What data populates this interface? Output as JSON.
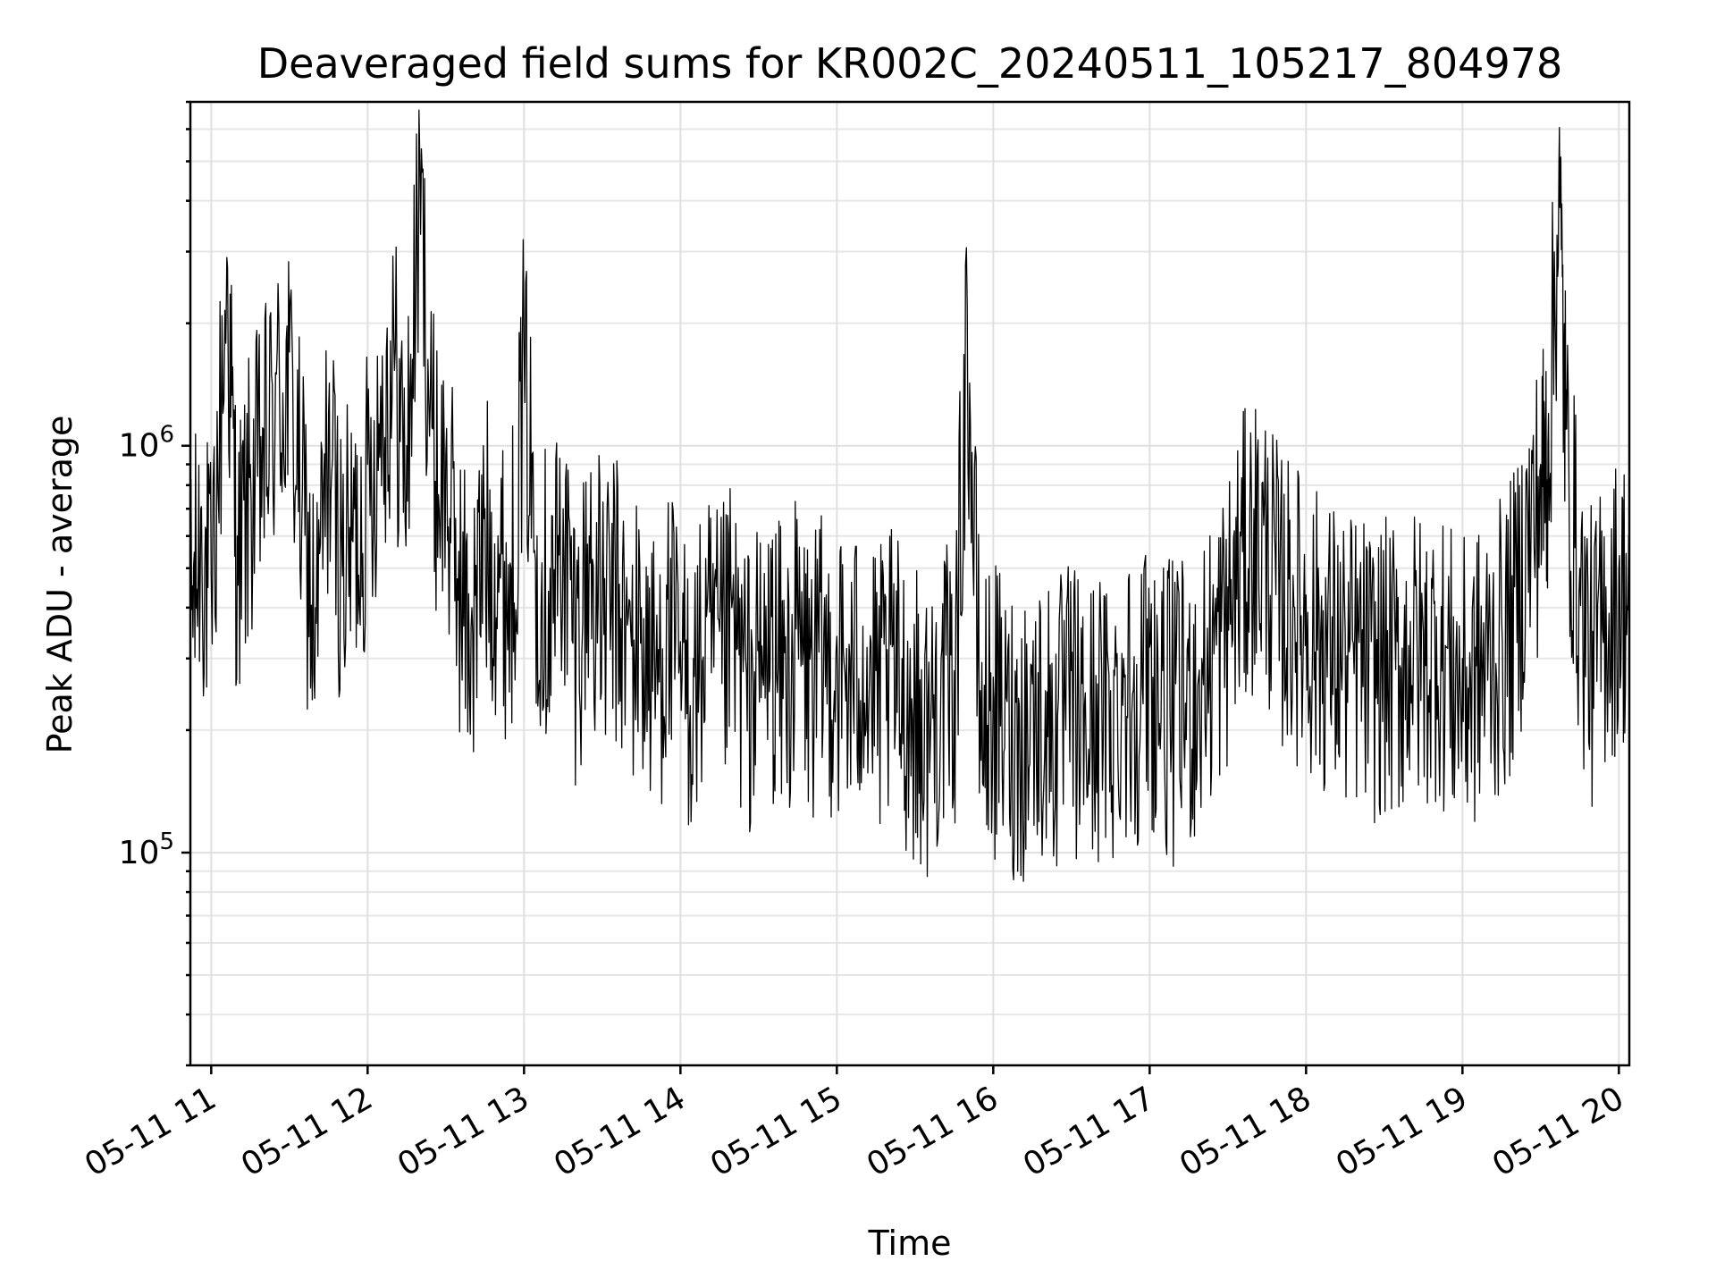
{
  "chart_data": {
    "type": "line",
    "title": "Deaveraged field sums for KR002C_20240511_105217_804978",
    "xlabel": "Time",
    "ylabel": "Peak ADU - average",
    "yscale": "log",
    "ylim": [
      30000,
      7000000
    ],
    "xlim": [
      "2024-05-11 10:52",
      "2024-05-11 20:04"
    ],
    "grid": true,
    "x_ticks": [
      {
        "time": "2024-05-11 11:00",
        "label": "05-11 11"
      },
      {
        "time": "2024-05-11 12:00",
        "label": "05-11 12"
      },
      {
        "time": "2024-05-11 13:00",
        "label": "05-11 13"
      },
      {
        "time": "2024-05-11 14:00",
        "label": "05-11 14"
      },
      {
        "time": "2024-05-11 15:00",
        "label": "05-11 15"
      },
      {
        "time": "2024-05-11 16:00",
        "label": "05-11 16"
      },
      {
        "time": "2024-05-11 17:00",
        "label": "05-11 17"
      },
      {
        "time": "2024-05-11 18:00",
        "label": "05-11 18"
      },
      {
        "time": "2024-05-11 19:00",
        "label": "05-11 19"
      },
      {
        "time": "2024-05-11 20:00",
        "label": "05-11 20"
      }
    ],
    "y_ticks": [
      {
        "value": 100000,
        "label": "10",
        "exponent": "5"
      },
      {
        "value": 1000000,
        "label": "10",
        "exponent": "6"
      }
    ],
    "series": [
      {
        "color": "#000000",
        "x": [
          "2024-05-11 10:52",
          "2024-05-11 10:56",
          "2024-05-11 11:00",
          "2024-05-11 11:06",
          "2024-05-11 11:10",
          "2024-05-11 11:15",
          "2024-05-11 11:20",
          "2024-05-11 11:25",
          "2024-05-11 11:30",
          "2024-05-11 11:35",
          "2024-05-11 11:40",
          "2024-05-11 11:45",
          "2024-05-11 11:50",
          "2024-05-11 11:55",
          "2024-05-11 12:00",
          "2024-05-11 12:05",
          "2024-05-11 12:10",
          "2024-05-11 12:15",
          "2024-05-11 12:20",
          "2024-05-11 12:25",
          "2024-05-11 12:30",
          "2024-05-11 12:35",
          "2024-05-11 12:40",
          "2024-05-11 12:45",
          "2024-05-11 12:50",
          "2024-05-11 12:55",
          "2024-05-11 13:00",
          "2024-05-11 13:05",
          "2024-05-11 13:10",
          "2024-05-11 13:15",
          "2024-05-11 13:20",
          "2024-05-11 13:25",
          "2024-05-11 13:30",
          "2024-05-11 13:35",
          "2024-05-11 13:40",
          "2024-05-11 13:45",
          "2024-05-11 13:50",
          "2024-05-11 13:55",
          "2024-05-11 14:00",
          "2024-05-11 14:05",
          "2024-05-11 14:10",
          "2024-05-11 14:15",
          "2024-05-11 14:20",
          "2024-05-11 14:25",
          "2024-05-11 14:30",
          "2024-05-11 14:35",
          "2024-05-11 14:40",
          "2024-05-11 14:45",
          "2024-05-11 14:50",
          "2024-05-11 14:55",
          "2024-05-11 15:00",
          "2024-05-11 15:05",
          "2024-05-11 15:10",
          "2024-05-11 15:15",
          "2024-05-11 15:20",
          "2024-05-11 15:25",
          "2024-05-11 15:30",
          "2024-05-11 15:35",
          "2024-05-11 15:40",
          "2024-05-11 15:45",
          "2024-05-11 15:50",
          "2024-05-11 15:55",
          "2024-05-11 16:00",
          "2024-05-11 16:05",
          "2024-05-11 16:10",
          "2024-05-11 16:15",
          "2024-05-11 16:20",
          "2024-05-11 16:25",
          "2024-05-11 16:30",
          "2024-05-11 16:35",
          "2024-05-11 16:40",
          "2024-05-11 16:45",
          "2024-05-11 16:50",
          "2024-05-11 16:55",
          "2024-05-11 17:00",
          "2024-05-11 17:05",
          "2024-05-11 17:10",
          "2024-05-11 17:15",
          "2024-05-11 17:20",
          "2024-05-11 17:25",
          "2024-05-11 17:30",
          "2024-05-11 17:35",
          "2024-05-11 17:40",
          "2024-05-11 17:45",
          "2024-05-11 17:50",
          "2024-05-11 17:55",
          "2024-05-11 18:00",
          "2024-05-11 18:05",
          "2024-05-11 18:10",
          "2024-05-11 18:15",
          "2024-05-11 18:20",
          "2024-05-11 18:25",
          "2024-05-11 18:30",
          "2024-05-11 18:35",
          "2024-05-11 18:40",
          "2024-05-11 18:45",
          "2024-05-11 18:50",
          "2024-05-11 18:55",
          "2024-05-11 19:00",
          "2024-05-11 19:05",
          "2024-05-11 19:10",
          "2024-05-11 19:15",
          "2024-05-11 19:20",
          "2024-05-11 19:25",
          "2024-05-11 19:30",
          "2024-05-11 19:33",
          "2024-05-11 19:37",
          "2024-05-11 19:40",
          "2024-05-11 19:45",
          "2024-05-11 19:50",
          "2024-05-11 19:55",
          "2024-05-11 20:00",
          "2024-05-11 20:04"
        ],
        "y": [
          450000,
          700000,
          480000,
          2900000,
          600000,
          900000,
          1100000,
          1500000,
          1700000,
          800000,
          400000,
          1200000,
          600000,
          700000,
          900000,
          1400000,
          1900000,
          1000000,
          5200000,
          1100000,
          950000,
          550000,
          400000,
          700000,
          600000,
          500000,
          1800000,
          600000,
          500000,
          700000,
          400000,
          600000,
          450000,
          500000,
          380000,
          400000,
          320000,
          420000,
          330000,
          300000,
          380000,
          350000,
          420000,
          300000,
          330000,
          380000,
          310000,
          400000,
          320000,
          350000,
          340000,
          300000,
          360000,
          280000,
          320000,
          300000,
          260000,
          240000,
          300000,
          280000,
          2200000,
          250000,
          270000,
          240000,
          230000,
          260000,
          250000,
          240000,
          280000,
          230000,
          260000,
          250000,
          300000,
          290000,
          320000,
          280000,
          260000,
          280000,
          300000,
          380000,
          450000,
          600000,
          700000,
          650000,
          500000,
          480000,
          430000,
          400000,
          380000,
          350000,
          360000,
          330000,
          340000,
          330000,
          370000,
          350000,
          380000,
          330000,
          300000,
          320000,
          350000,
          380000,
          450000,
          700000,
          900000,
          1200000,
          5000000,
          1100000,
          500000,
          350000,
          450000,
          500000,
          520000
        ]
      }
    ]
  }
}
